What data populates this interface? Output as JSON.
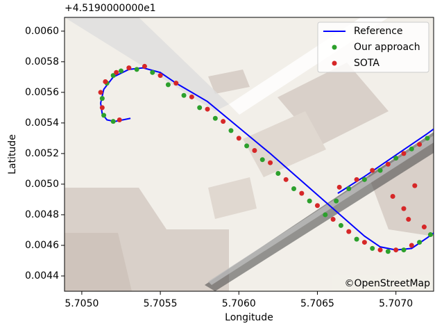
{
  "chart_data": {
    "type": "scatter",
    "offset_text": "+4.5190000000e1",
    "xlabel": "Longitude",
    "ylabel": "Latitude",
    "attribution": "©OpenStreetMap",
    "xlim": [
      5.70489,
      5.70724
    ],
    "ylim": [
      0.0043,
      0.00609
    ],
    "xticks": [
      {
        "value": 5.705,
        "label": "5.7050"
      },
      5.7055,
      {
        "value": 5.706,
        "label": "5.7060"
      },
      5.7065,
      {
        "value": 5.707,
        "label": "5.7070"
      }
    ],
    "yticks": [
      0.0044,
      0.0046,
      0.0048,
      {
        "value": 0.005,
        "label": "0.0050"
      },
      0.0052,
      0.0054,
      0.0056,
      0.0058,
      {
        "value": 0.006,
        "label": "0.0060"
      }
    ],
    "legend": "upper right",
    "series": [
      {
        "name": "Reference",
        "color": "#0000ff",
        "kind": "line",
        "x": [
          5.70531,
          5.70526,
          5.70521,
          5.70516,
          5.70513,
          5.70512,
          5.70514,
          5.7052,
          5.7053,
          5.70539,
          5.7055,
          5.7056,
          5.7058,
          5.706,
          5.7062,
          5.7064,
          5.7066,
          5.7068,
          5.7069,
          5.707,
          5.7071,
          5.7072,
          5.70724,
          null,
          5.70663,
          5.7068,
          5.707,
          5.7072,
          5.70724
        ],
        "values": [
          0.00543,
          0.00542,
          0.00541,
          0.00542,
          0.00546,
          0.00553,
          0.00562,
          0.0057,
          0.00575,
          0.00576,
          0.00573,
          0.00566,
          0.00554,
          0.00537,
          0.0052,
          0.00502,
          0.00484,
          0.00466,
          0.00459,
          0.00457,
          0.00458,
          0.00465,
          0.00468,
          null,
          0.00494,
          0.00505,
          0.00519,
          0.00533,
          0.00536
        ]
      },
      {
        "name": "Our approach",
        "color": "#2ca02c",
        "kind": "scatter",
        "x": [
          5.7052,
          5.70514,
          5.70513,
          5.70516,
          5.7052,
          5.70525,
          5.70535,
          5.70545,
          5.70555,
          5.70565,
          5.70575,
          5.70585,
          5.70595,
          5.70605,
          5.70615,
          5.70625,
          5.70635,
          5.70645,
          5.70655,
          5.70665,
          5.70675,
          5.70685,
          5.70695,
          5.70705,
          5.70715,
          5.70722,
          5.70662,
          5.7067,
          5.7068,
          5.7069,
          5.707,
          5.7071,
          5.7072
        ],
        "values": [
          0.00541,
          0.00545,
          0.00556,
          0.00566,
          0.00571,
          0.00574,
          0.00575,
          0.00573,
          0.00565,
          0.00558,
          0.0055,
          0.00543,
          0.00535,
          0.00525,
          0.00516,
          0.00507,
          0.00497,
          0.00489,
          0.0048,
          0.00473,
          0.00464,
          0.00458,
          0.00456,
          0.00457,
          0.00462,
          0.00467,
          0.00489,
          0.00497,
          0.00503,
          0.00509,
          0.00517,
          0.00523,
          0.0053
        ]
      },
      {
        "name": "SOTA",
        "color": "#d62728",
        "kind": "scatter",
        "x": [
          5.70524,
          5.70513,
          5.70512,
          5.70515,
          5.70522,
          5.7053,
          5.7054,
          5.7055,
          5.7056,
          5.7057,
          5.7058,
          5.7059,
          5.706,
          5.7061,
          5.7062,
          5.7063,
          5.7064,
          5.7065,
          5.7066,
          5.7067,
          5.7068,
          5.7069,
          5.707,
          5.7071,
          5.70664,
          5.70675,
          5.70685,
          5.70695,
          5.70705,
          5.70715,
          5.70698,
          5.70705,
          5.70708,
          5.70712,
          5.70718
        ],
        "values": [
          0.00542,
          0.0055,
          0.0056,
          0.00567,
          0.00573,
          0.00576,
          0.00577,
          0.00571,
          0.00566,
          0.00557,
          0.00549,
          0.00541,
          0.0053,
          0.00522,
          0.00514,
          0.00503,
          0.00494,
          0.00486,
          0.00477,
          0.00469,
          0.00462,
          0.00457,
          0.00457,
          0.0046,
          0.00498,
          0.00503,
          0.00509,
          0.00513,
          0.0052,
          0.00526,
          0.00492,
          0.00484,
          0.00477,
          0.00499,
          0.00472
        ]
      }
    ]
  }
}
